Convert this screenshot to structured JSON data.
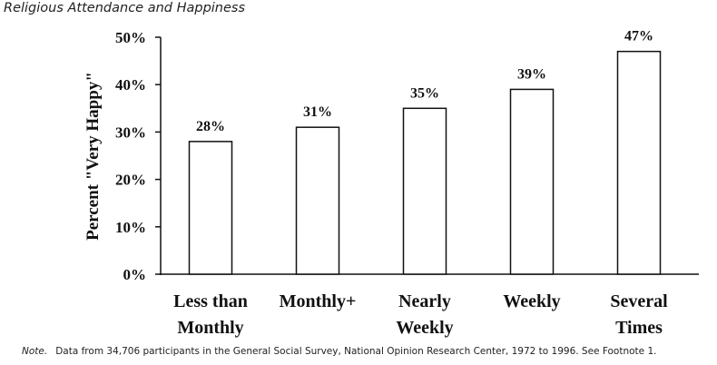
{
  "title": "Religious Attendance and Happiness",
  "note": {
    "lead": "Note.",
    "text": "Data from 34,706 participants in the General Social Survey, National Opinion Research Center, 1972 to 1996. See Footnote 1."
  },
  "chart_data": {
    "type": "bar",
    "title": "Religious Attendance and Happiness",
    "xlabel": "",
    "ylabel": "Percent \"Very Happy\"",
    "ylim": [
      0,
      50
    ],
    "yticks": [
      "0%",
      "10%",
      "20%",
      "30%",
      "40%",
      "50%"
    ],
    "categories": [
      [
        "Less than",
        "Monthly"
      ],
      [
        "Monthly+"
      ],
      [
        "Nearly",
        "Weekly"
      ],
      [
        "Weekly"
      ],
      [
        "Several",
        "Times"
      ]
    ],
    "values": [
      28,
      31,
      35,
      39,
      47
    ],
    "value_labels": [
      "28%",
      "31%",
      "35%",
      "39%",
      "47%"
    ],
    "grid": false,
    "colors": {
      "bar_fill": "#ffffff",
      "bar_stroke": "#111111",
      "axis": "#111111"
    }
  }
}
